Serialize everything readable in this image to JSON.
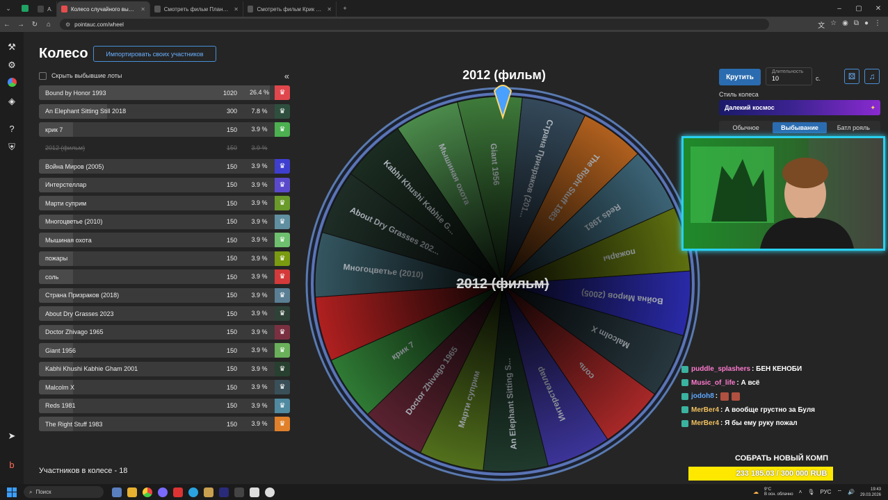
{
  "browser": {
    "tabs": [
      {
        "label": "AI",
        "favicon_color": "#444444",
        "active": false
      },
      {
        "label": "Колесо случайного выбора -",
        "favicon_color": "#e44d4d",
        "active": true
      },
      {
        "label": "Смотреть фильм Планета об",
        "favicon_color": "#555555",
        "active": false
      },
      {
        "label": "Смотреть фильм Крик онлайн",
        "favicon_color": "#555555",
        "active": false
      }
    ],
    "url": "pointauc.com/wheel"
  },
  "app": {
    "page_title": "Колесо",
    "import_button": "Импортировать своих участников",
    "hide_eliminated": "Скрыть выбывшие лоты",
    "collapse_icon": "«",
    "participants_count": "Участников в колесе - 18",
    "lots": [
      {
        "name": "Bound by Honor 1993",
        "amount": "1020",
        "percent": "26.4 %",
        "percent_value": 26.4,
        "color": "#e0474c",
        "out": false
      },
      {
        "name": "An Elephant Sitting Still 2018",
        "amount": "300",
        "percent": "7.8 %",
        "percent_value": 7.8,
        "color": "#2f4f3e",
        "out": false
      },
      {
        "name": "крик 7",
        "amount": "150",
        "percent": "3.9 %",
        "percent_value": 3.9,
        "color": "#4caf50",
        "out": false
      },
      {
        "name": "2012 (фильм)",
        "amount": "150",
        "percent": "3.9 %",
        "percent_value": 3.9,
        "color": "",
        "out": true
      },
      {
        "name": "Война Миров (2005)",
        "amount": "150",
        "percent": "3.9 %",
        "percent_value": 3.9,
        "color": "#3f3fcf",
        "out": false
      },
      {
        "name": "Интерстеллар",
        "amount": "150",
        "percent": "3.9 %",
        "percent_value": 3.9,
        "color": "#5a4acb",
        "out": false
      },
      {
        "name": "Марти суприм",
        "amount": "150",
        "percent": "3.9 %",
        "percent_value": 3.9,
        "color": "#6a9a2a",
        "out": false
      },
      {
        "name": "Многоцветье (2010)",
        "amount": "150",
        "percent": "3.9 %",
        "percent_value": 3.9,
        "color": "#5f8fa0",
        "out": false
      },
      {
        "name": "Мышиная охота",
        "amount": "150",
        "percent": "3.9 %",
        "percent_value": 3.9,
        "color": "#6ebf6e",
        "out": false
      },
      {
        "name": "пожары",
        "amount": "150",
        "percent": "3.9 %",
        "percent_value": 3.9,
        "color": "#7a9a10",
        "out": false
      },
      {
        "name": "соль",
        "amount": "150",
        "percent": "3.9 %",
        "percent_value": 3.9,
        "color": "#d43a3a",
        "out": false
      },
      {
        "name": "Страна Призраков (2018)",
        "amount": "150",
        "percent": "3.9 %",
        "percent_value": 3.9,
        "color": "#5a7f95",
        "out": false
      },
      {
        "name": "About Dry Grasses 2023",
        "amount": "150",
        "percent": "3.9 %",
        "percent_value": 3.9,
        "color": "#2e4238",
        "out": false
      },
      {
        "name": "Doctor Zhivago 1965",
        "amount": "150",
        "percent": "3.9 %",
        "percent_value": 3.9,
        "color": "#7a3040",
        "out": false
      },
      {
        "name": "Giant 1956",
        "amount": "150",
        "percent": "3.9 %",
        "percent_value": 3.9,
        "color": "#6aaf5a",
        "out": false
      },
      {
        "name": "Kabhi Khushi Kabhie Gham 2001",
        "amount": "150",
        "percent": "3.9 %",
        "percent_value": 3.9,
        "color": "#284030",
        "out": false
      },
      {
        "name": "Malcolm X",
        "amount": "150",
        "percent": "3.9 %",
        "percent_value": 3.9,
        "color": "#3a5058",
        "out": false
      },
      {
        "name": "Reds 1981",
        "amount": "150",
        "percent": "3.9 %",
        "percent_value": 3.9,
        "color": "#4f8aa0",
        "out": false
      },
      {
        "name": "The Right Stuff 1983",
        "amount": "150",
        "percent": "3.9 %",
        "percent_value": 3.9,
        "color": "#e0802a",
        "out": false
      }
    ]
  },
  "wheel": {
    "winner_title": "2012 (фильм)",
    "center_text": "2012 (фильм)",
    "segments": [
      {
        "label": "Giant 1956",
        "color": "#3e7a3a"
      },
      {
        "label": "Страна Призраков (201...",
        "color": "#34495a"
      },
      {
        "label": "The Right Stuff 1983",
        "color": "#b0601e"
      },
      {
        "label": "Reds 1981",
        "color": "#3c6476"
      },
      {
        "label": "пожары",
        "color": "#5e7010"
      },
      {
        "label": "Война Миров (2005)",
        "color": "#2a2aa8"
      },
      {
        "label": "Malcolm X",
        "color": "#27373e"
      },
      {
        "label": "соль",
        "color": "#a82828"
      },
      {
        "label": "Интерстеллар",
        "color": "#3c3498"
      },
      {
        "label": "An Elephant Sitting S...",
        "color": "#203a2d"
      },
      {
        "label": "Марти суприм",
        "color": "#52701c"
      },
      {
        "label": "Doctor Zhivago 1965",
        "color": "#5a2230"
      },
      {
        "label": "крик 7",
        "color": "#2f7a34"
      },
      {
        "label": "",
        "color": "#b02020"
      },
      {
        "label": "Многоцветье (2010)",
        "color": "#345660"
      },
      {
        "label": "About Dry Grasses 202...",
        "color": "#1e2d26"
      },
      {
        "label": "Kabhi Khushi Kabhie G...",
        "color": "#1b2c21"
      },
      {
        "label": "Мышиная охота",
        "color": "#4b8a4b"
      }
    ]
  },
  "controls": {
    "spin_button": "Крутить",
    "duration_label": "Длительность",
    "duration_value": "10",
    "duration_unit": "с.",
    "style_label": "Стиль колеса",
    "style_value": "Далекий космос",
    "modes": [
      {
        "label": "Обычное",
        "active": false
      },
      {
        "label": "Выбывание",
        "active": true
      },
      {
        "label": "Батл рояль",
        "active": false
      }
    ]
  },
  "chat": [
    {
      "user": "puddle_splashers",
      "color": "#ff7bd0",
      "message": ": БЕН КЕНОБИ",
      "emotes": 0
    },
    {
      "user": "Music_of_life",
      "color": "#ff7bd0",
      "message": ": А всё",
      "emotes": 0
    },
    {
      "user": "jodoh8",
      "color": "#5fa8ff",
      "message": ":",
      "emotes": 2
    },
    {
      "user": "MerBer4",
      "color": "#f0c060",
      "message": ": А вообще грустно за Буля",
      "emotes": 0
    },
    {
      "user": "MerBer4",
      "color": "#f0c060",
      "message": ": Я бы ему руку пожал",
      "emotes": 0
    }
  ],
  "donation": {
    "title": "СОБРАТЬ НОВЫЙ КОМП",
    "progress_text": "233 185.03 / 300 000 RUB",
    "progress_fraction": 0.777
  },
  "taskbar": {
    "search": "Поиск",
    "weather_temp": "9°C",
    "weather_desc": "В осн. облачно",
    "lang": "РУС",
    "time": "19:43",
    "date": "29.03.2026"
  }
}
